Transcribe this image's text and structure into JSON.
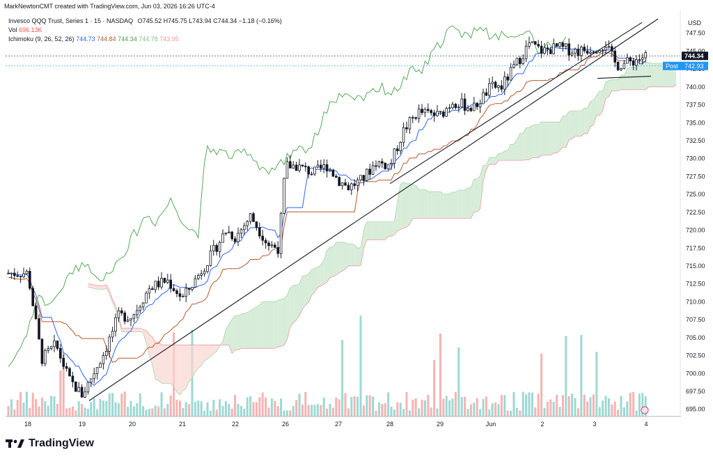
{
  "header": {
    "credit": "MarkNewtonCMT created with TradingView.com, Jun 03, 2026 16:26 UTC-4"
  },
  "legend": {
    "symbol": "Invesco QQQ Trust, Series 1 · 15 · NASDAQ",
    "ohlc": "O745.52 H745.75 L743.94 C744.34 −1.18 (−0.16%)",
    "vol_label": "Vol",
    "vol_value": "696.13K",
    "ichimoku_label": "Ichimoku (9, 26, 52, 26)",
    "ichimoku_values": [
      "744.73",
      "744.84",
      "744.34",
      "744.78",
      "743.95"
    ]
  },
  "axis": {
    "currency": "USD"
  },
  "price_tags": {
    "last": "744.34",
    "post_label": "Post",
    "post": "742.93"
  },
  "brand": {
    "name": "TradingView"
  },
  "colors": {
    "up": "#131722",
    "tenkan": "#2962ff",
    "kijun": "#b7572b",
    "chikou": "#43a047",
    "cloud_bull": "#c8e6c9",
    "cloud_bear": "#f9d6d2",
    "vol_up": "#7ccbc4",
    "vol_down": "#f19a98"
  },
  "chart_data": {
    "type": "candlestick",
    "ylim": [
      694,
      750
    ],
    "y_ticks": [
      "747.50",
      "745.00",
      "742.50",
      "740.00",
      "737.50",
      "735.00",
      "732.50",
      "730.00",
      "727.50",
      "725.00",
      "722.50",
      "720.00",
      "717.50",
      "715.00",
      "712.50",
      "710.00",
      "707.50",
      "705.00",
      "702.50",
      "700.00",
      "697.50",
      "695.00"
    ],
    "x_labels": [
      "18",
      "19",
      "20",
      "21",
      "22",
      "26",
      "27",
      "28",
      "29",
      "Jun",
      "2",
      "3",
      "4"
    ],
    "key_closes": [
      {
        "label": "18",
        "value": 714.0
      },
      {
        "label": "19",
        "value": 697.0
      },
      {
        "label": "20",
        "value": 708.0
      },
      {
        "label": "21",
        "value": 710.5
      },
      {
        "label": "22",
        "value": 719.0
      },
      {
        "label": "26",
        "value": 729.0
      },
      {
        "label": "27",
        "value": 727.0
      },
      {
        "label": "28",
        "value": 729.0
      },
      {
        "label": "29",
        "value": 736.0
      },
      {
        "label": "Jun",
        "value": 740.0
      },
      {
        "label": "2",
        "value": 745.0
      },
      {
        "label": "3",
        "value": 745.5
      },
      {
        "label": "4",
        "value": 744.34
      }
    ],
    "last_price": 744.34,
    "post_price": 742.93,
    "series": [
      {
        "name": "Tenkan",
        "value": 744.73
      },
      {
        "name": "Kijun",
        "value": 744.84
      },
      {
        "name": "Chikou",
        "value": 744.34
      },
      {
        "name": "Senkou A",
        "value": 744.78
      },
      {
        "name": "Senkou B",
        "value": 743.95
      }
    ]
  }
}
